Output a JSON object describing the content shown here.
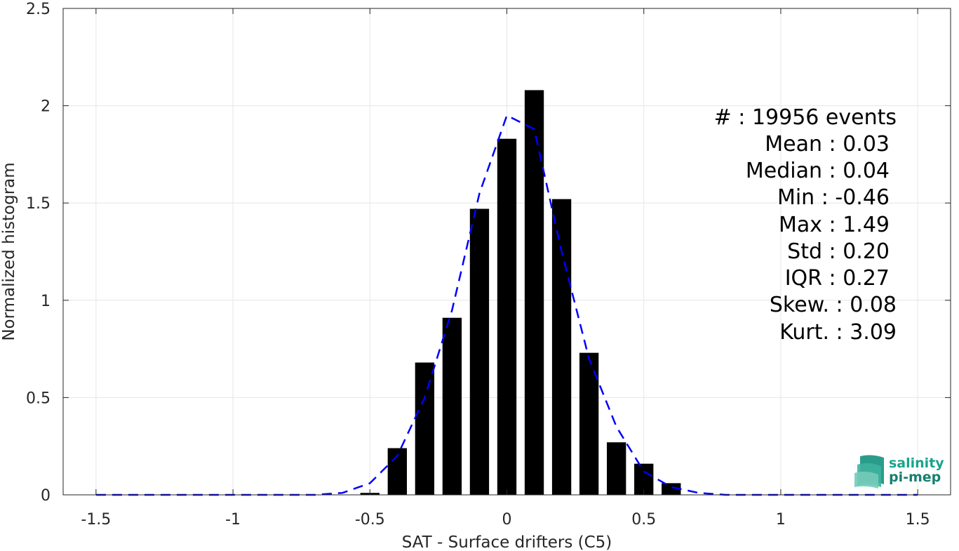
{
  "chart_data": {
    "type": "bar",
    "xlabel": "SAT - Surface drifters (C5)",
    "ylabel": "Normalized histogram",
    "xlim": [
      -1.62,
      1.62
    ],
    "ylim": [
      0,
      2.5
    ],
    "grid": true,
    "x_ticks": [
      -1.5,
      -1,
      -0.5,
      0,
      0.5,
      1,
      1.5
    ],
    "x_tick_labels": [
      "-1.5",
      "-1",
      "-0.5",
      "0",
      "0.5",
      "1",
      "1.5"
    ],
    "y_ticks": [
      0,
      0.5,
      1,
      1.5,
      2,
      2.5
    ],
    "y_tick_labels": [
      "0",
      "0.5",
      "1",
      "1.5",
      "2",
      "2.5"
    ],
    "bar_width": 0.07,
    "bars": {
      "x": [
        -0.5,
        -0.4,
        -0.3,
        -0.2,
        -0.1,
        0.0,
        0.1,
        0.2,
        0.3,
        0.4,
        0.5,
        0.6
      ],
      "values": [
        0.01,
        0.24,
        0.68,
        0.91,
        1.47,
        1.83,
        2.08,
        1.52,
        0.73,
        0.27,
        0.16,
        0.06
      ],
      "color": "#000000"
    },
    "fit_curve": {
      "style": "dashed",
      "color": "#0000ff",
      "x": [
        -1.5,
        -1.4,
        -1.3,
        -1.2,
        -1.1,
        -1.0,
        -0.9,
        -0.8,
        -0.7,
        -0.6,
        -0.5,
        -0.4,
        -0.3,
        -0.2,
        -0.1,
        0.0,
        0.1,
        0.2,
        0.3,
        0.4,
        0.5,
        0.6,
        0.7,
        0.8,
        0.9,
        1.0,
        1.1,
        1.2,
        1.3,
        1.4,
        1.5
      ],
      "y": [
        0,
        0,
        0,
        0,
        0,
        0,
        0,
        0,
        0,
        0.01,
        0.06,
        0.2,
        0.5,
        0.95,
        1.55,
        1.95,
        1.88,
        1.25,
        0.7,
        0.35,
        0.12,
        0.04,
        0.01,
        0,
        0,
        0,
        0,
        0,
        0,
        0,
        0
      ]
    },
    "annotations": [
      "#  : 19956 events",
      "Mean : 0.03",
      "Median : 0.04",
      "Min : -0.46",
      "Max : 1.49",
      "Std : 0.20",
      "IQR : 0.27",
      "Skew. : 0.08",
      "Kurt. : 3.09"
    ]
  },
  "logo": {
    "line1": "salinity",
    "line2": "pi-mep",
    "color": "#1aa38c"
  }
}
